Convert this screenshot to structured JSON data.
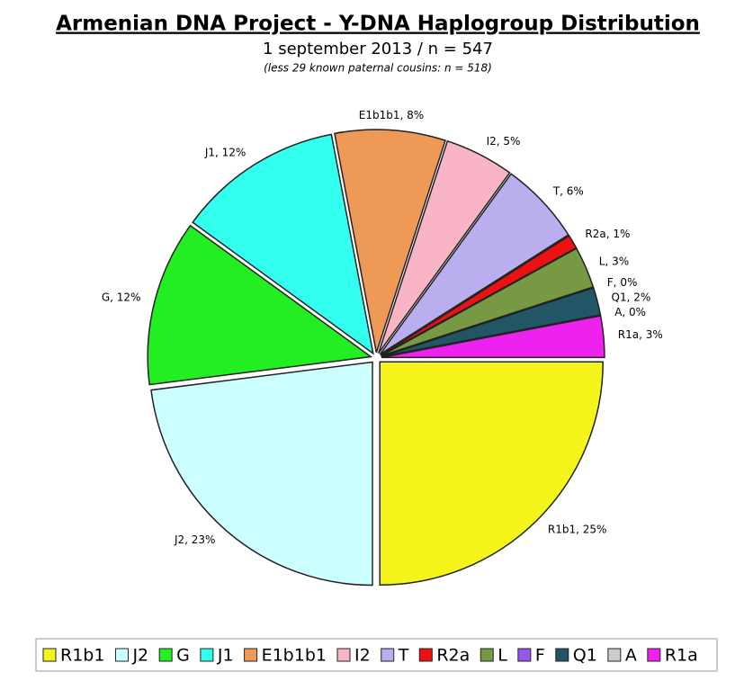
{
  "chart_data": {
    "type": "pie",
    "title": "Armenian DNA Project - Y-DNA Haplogroup Distribution",
    "subtitle": "1 september 2013 / n = 547",
    "note": "(less 29 known paternal cousins: n = 518)",
    "categories": [
      "R1b1",
      "J2",
      "G",
      "J1",
      "E1b1b1",
      "I2",
      "T",
      "R2a",
      "L",
      "F",
      "Q1",
      "A",
      "R1a"
    ],
    "values": [
      25,
      23,
      12,
      12,
      8,
      5,
      6,
      1,
      3,
      0,
      2,
      0,
      3
    ],
    "value_labels": [
      "R1b1, 25%",
      "J2, 23%",
      "G, 12%",
      "J1, 12%",
      "E1b1b1, 8%",
      "I2, 5%",
      "T, 6%",
      "R2a, 1%",
      "L, 3%",
      "F, 0%",
      "Q1, 2%",
      "A, 0%",
      "R1a, 3%"
    ],
    "colors": [
      "#f5f51c",
      "#ccffff",
      "#22ee22",
      "#33ffee",
      "#ee9955",
      "#f9b5c5",
      "#bbaeee",
      "#ee1111",
      "#779944",
      "#9955ee",
      "#225566",
      "#cccccc",
      "#ee22ee"
    ],
    "legend": "bottom"
  }
}
